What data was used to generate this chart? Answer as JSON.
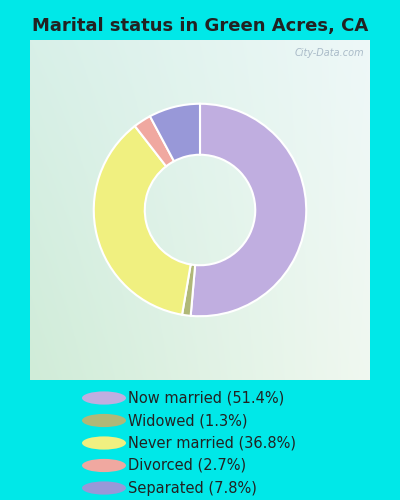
{
  "title": "Marital status in Green Acres, CA",
  "slices": [
    51.4,
    1.3,
    36.8,
    2.7,
    7.8
  ],
  "labels": [
    "Now married (51.4%)",
    "Widowed (1.3%)",
    "Never married (36.8%)",
    "Divorced (2.7%)",
    "Separated (7.8%)"
  ],
  "colors": [
    "#c0aee0",
    "#b0b878",
    "#f0f080",
    "#f0a8a0",
    "#9898d8"
  ],
  "bg_cyan": "#00e8e8",
  "chart_bg_tl": "#d8f0e8",
  "chart_bg_tr": "#eef8f8",
  "chart_bg_bl": "#d0ecd8",
  "chart_bg_br": "#f0f8f0",
  "title_fontsize": 13,
  "legend_fontsize": 10.5,
  "watermark": "City-Data.com",
  "startangle": 90
}
